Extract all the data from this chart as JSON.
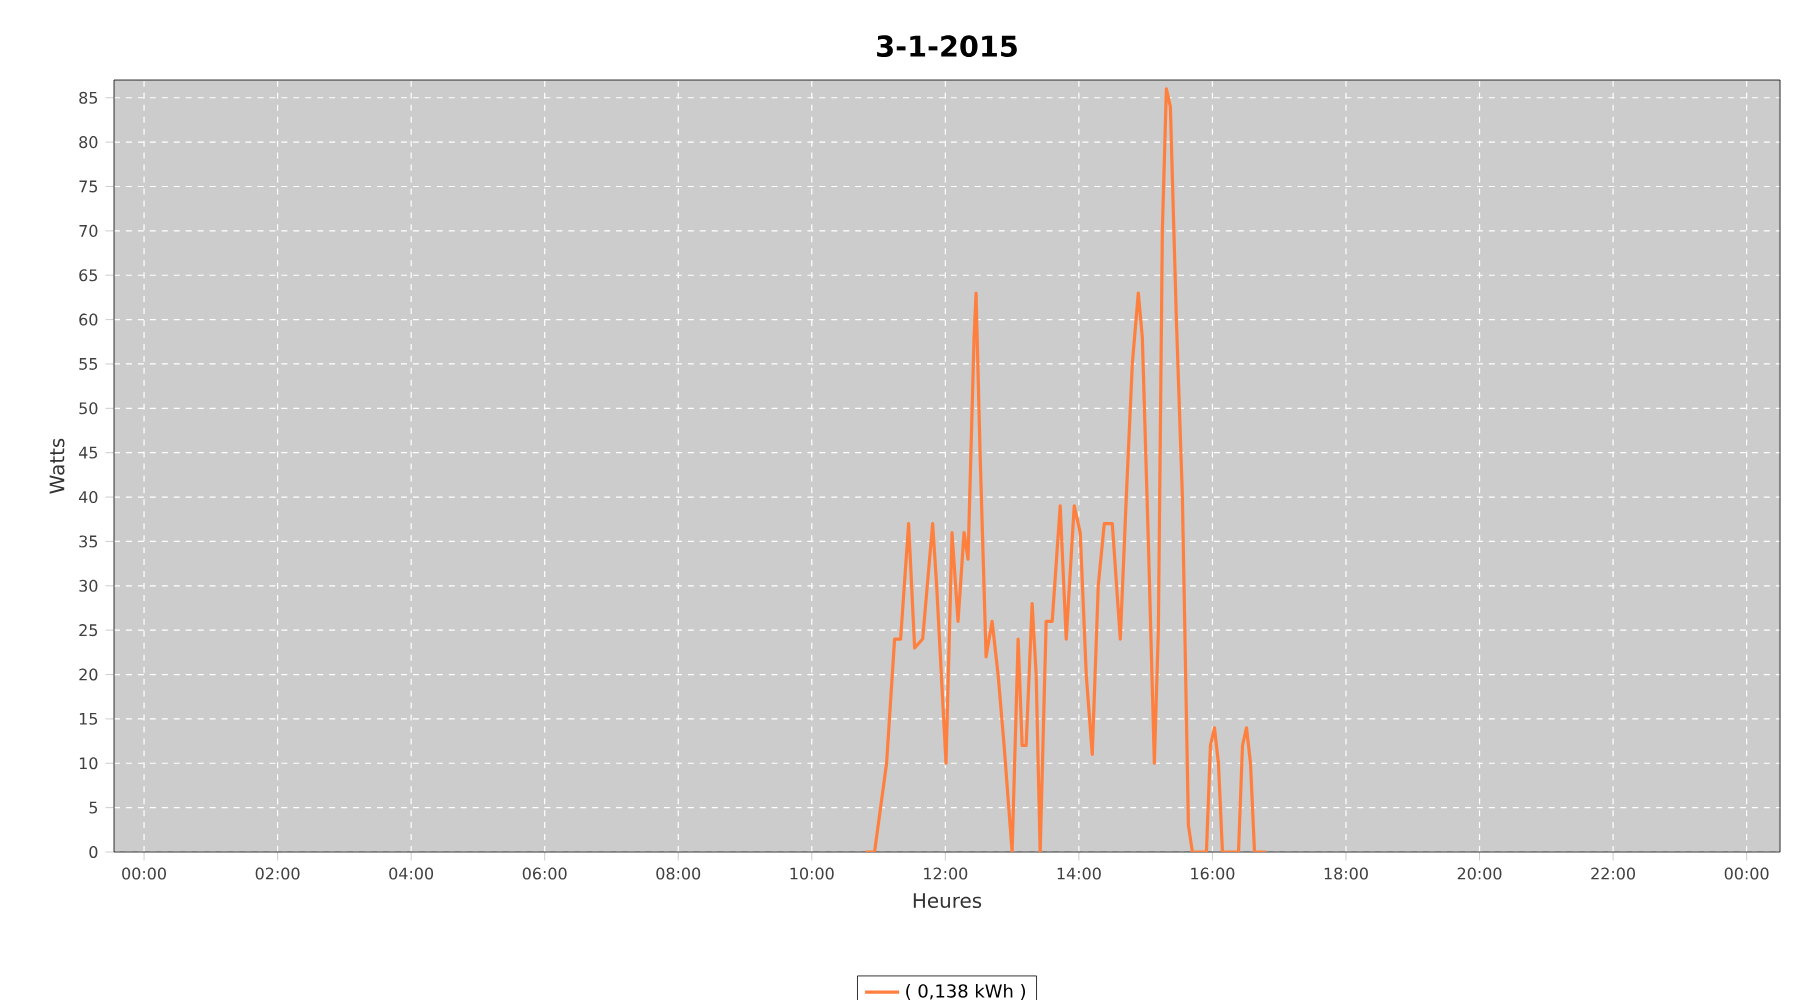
{
  "chart_data": {
    "type": "line",
    "title": "3-1-2015",
    "xlabel": "Heures",
    "ylabel": "Watts",
    "x": [
      10.8,
      10.94,
      11.12,
      11.24,
      11.33,
      11.45,
      11.54,
      11.66,
      11.81,
      11.87,
      12.01,
      12.1,
      12.19,
      12.28,
      12.34,
      12.43,
      12.46,
      12.52,
      12.61,
      12.7,
      12.79,
      12.88,
      13.0,
      13.09,
      13.15,
      13.21,
      13.3,
      13.36,
      13.42,
      13.51,
      13.6,
      13.72,
      13.81,
      13.93,
      14.02,
      14.11,
      14.2,
      14.29,
      14.38,
      14.5,
      14.62,
      14.71,
      14.8,
      14.89,
      14.95,
      15.04,
      15.13,
      15.19,
      15.25,
      15.31,
      15.37,
      15.46,
      15.55,
      15.64,
      15.7,
      15.91,
      15.97,
      16.03,
      16.09,
      16.15,
      16.39,
      16.45,
      16.51,
      16.57,
      16.63,
      16.8
    ],
    "series": [
      {
        "name": "( 0,138 kWh )",
        "color": "#ff7f3f",
        "values": [
          0,
          0,
          10,
          24,
          24,
          37,
          23,
          24,
          37,
          30,
          10,
          36,
          26,
          36,
          33,
          58,
          63,
          45,
          22,
          26,
          20,
          12,
          0,
          24,
          12,
          12,
          28,
          20,
          0,
          26,
          26,
          39,
          24,
          39,
          36,
          20,
          11,
          30,
          37,
          37,
          24,
          40,
          55,
          63,
          58,
          35,
          10,
          25,
          70,
          86,
          84,
          60,
          40,
          3,
          0,
          0,
          12,
          14,
          10,
          0,
          0,
          12,
          14,
          10,
          0,
          0
        ]
      }
    ],
    "xlim": [
      -0.45,
      24.5
    ],
    "ylim": [
      0,
      87
    ],
    "xticks": [
      {
        "value": 0,
        "label": "00:00"
      },
      {
        "value": 2,
        "label": "02:00"
      },
      {
        "value": 4,
        "label": "04:00"
      },
      {
        "value": 6,
        "label": "06:00"
      },
      {
        "value": 8,
        "label": "08:00"
      },
      {
        "value": 10,
        "label": "10:00"
      },
      {
        "value": 12,
        "label": "12:00"
      },
      {
        "value": 14,
        "label": "14:00"
      },
      {
        "value": 16,
        "label": "16:00"
      },
      {
        "value": 18,
        "label": "18:00"
      },
      {
        "value": 20,
        "label": "20:00"
      },
      {
        "value": 22,
        "label": "22:00"
      },
      {
        "value": 24,
        "label": "00:00"
      }
    ],
    "yticks": [
      0,
      5,
      10,
      15,
      20,
      25,
      30,
      35,
      40,
      45,
      50,
      55,
      60,
      65,
      70,
      75,
      80,
      85
    ],
    "grid": true,
    "legend": "bottom",
    "marker": "none",
    "line_style": "solid"
  }
}
